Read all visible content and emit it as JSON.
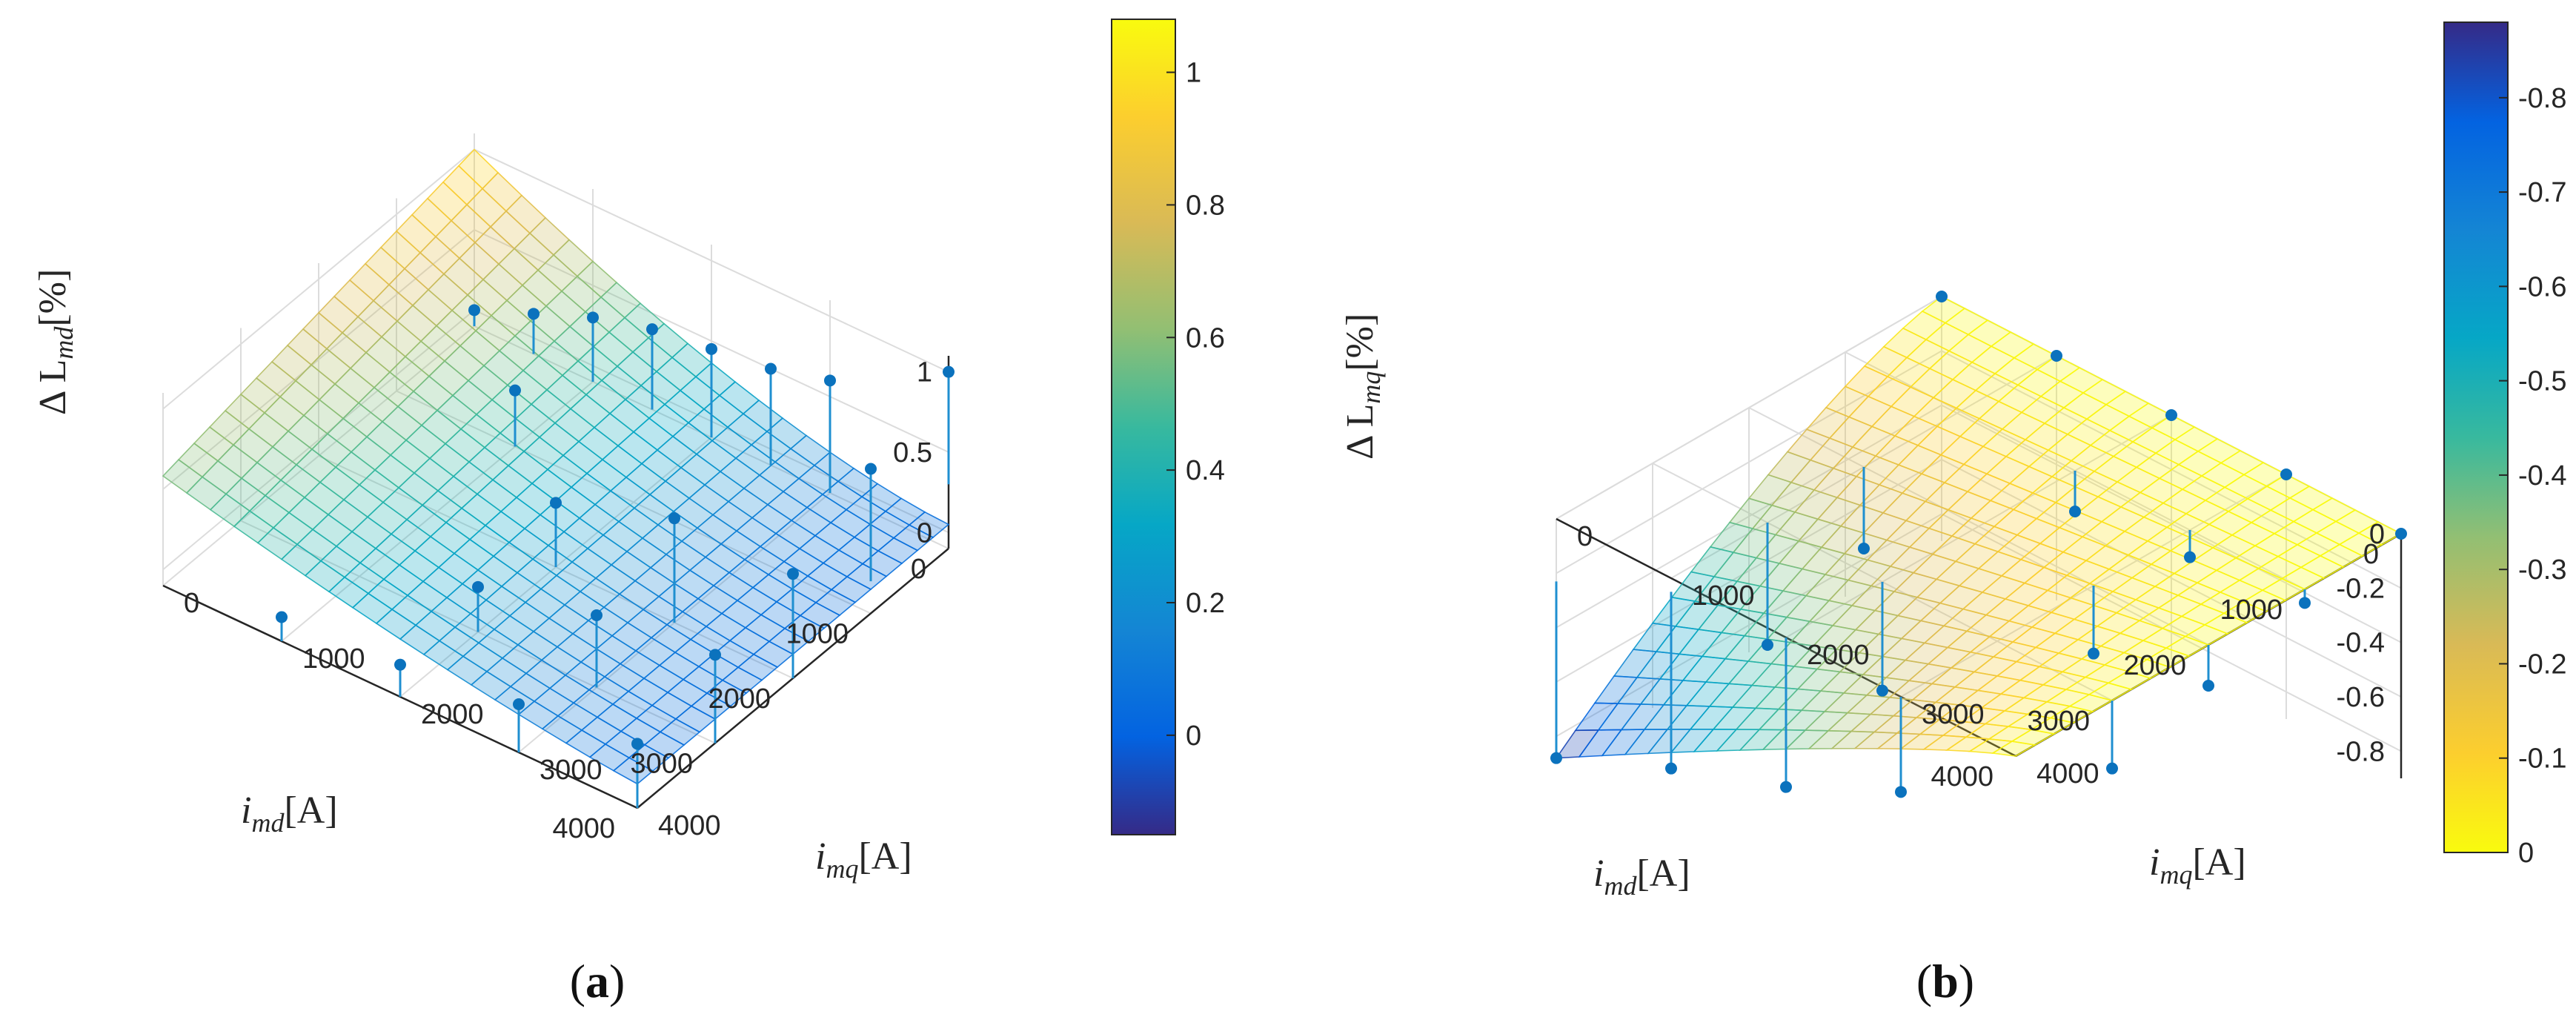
{
  "chart_data": [
    {
      "panel": "(a)",
      "type": "surface3d",
      "zlabel": "Δ L_md[%]",
      "xlabel": "i_md[A]",
      "ylabel": "i_mq[A]",
      "x_ticks": [
        "0",
        "1000",
        "2000",
        "3000",
        "4000"
      ],
      "y_ticks": [
        "0",
        "1000",
        "2000",
        "3000",
        "4000"
      ],
      "z_ticks": [
        "0",
        "0.5",
        "1"
      ],
      "xlim": [
        0,
        4000
      ],
      "ylim": [
        0,
        4000
      ],
      "zlim": [
        0,
        1.1
      ],
      "colorbar": {
        "ticks": [
          "0",
          "0.2",
          "0.4",
          "0.6",
          "0.8",
          "1"
        ],
        "range": [
          -0.15,
          1.08
        ],
        "colormap": "parula"
      },
      "grid": true,
      "surface_colorbar_range": [
        -0.15,
        1.08
      ],
      "measured_points": [
        {
          "x": 0,
          "y": 4000,
          "z": 1.0
        },
        {
          "x": 1000,
          "y": 4000,
          "z": 0.8
        },
        {
          "x": 0,
          "y": 3000,
          "z": 0.6
        },
        {
          "x": 0,
          "y": 2500,
          "z": 0.5
        },
        {
          "x": 0,
          "y": 2000,
          "z": 0.45
        },
        {
          "x": 0,
          "y": 1500,
          "z": 0.4
        },
        {
          "x": 0,
          "y": 1000,
          "z": 0.3
        },
        {
          "x": 0,
          "y": 500,
          "z": 0.15
        },
        {
          "x": 0,
          "y": 0,
          "z": 0.0
        },
        {
          "x": 2000,
          "y": 4000,
          "z": 0.55
        },
        {
          "x": 2000,
          "y": 3000,
          "z": 0.55
        },
        {
          "x": 3000,
          "y": 4000,
          "z": 0.45
        },
        {
          "x": 4000,
          "y": 4000,
          "z": 0.3
        },
        {
          "x": 3000,
          "y": 3000,
          "z": 0.35
        },
        {
          "x": 2000,
          "y": 2000,
          "z": 0.3
        },
        {
          "x": 1000,
          "y": 1000,
          "z": 0.25
        },
        {
          "x": 4000,
          "y": 3000,
          "z": 0.2
        },
        {
          "x": 3000,
          "y": 2000,
          "z": 0.18
        },
        {
          "x": 4000,
          "y": 2000,
          "z": 0.1
        },
        {
          "x": 4000,
          "y": 1000,
          "z": 0.05
        }
      ]
    },
    {
      "panel": "(b)",
      "type": "surface3d",
      "zlabel": "Δ L_mq[%]",
      "xlabel": "i_md[A]",
      "ylabel": "i_mq[A]",
      "x_ticks": [
        "0",
        "1000",
        "2000",
        "3000",
        "4000"
      ],
      "y_ticks": [
        "0",
        "1000",
        "2000",
        "3000",
        "4000"
      ],
      "z_ticks": [
        "0",
        "-0.2",
        "-0.4",
        "-0.6",
        "-0.8"
      ],
      "xlim": [
        0,
        4000
      ],
      "ylim": [
        0,
        4000
      ],
      "zlim": [
        -0.9,
        0
      ],
      "colorbar": {
        "ticks": [
          "0",
          "-0.1",
          "-0.2",
          "-0.3",
          "-0.4",
          "-0.5",
          "-0.6",
          "-0.7",
          "-0.8"
        ],
        "range": [
          -0.88,
          0
        ],
        "colormap": "parula_reversed"
      },
      "grid": true,
      "measured_points": [
        {
          "x": 0,
          "y": 4000,
          "z": 0.0
        },
        {
          "x": 0,
          "y": 3000,
          "z": 0.0
        },
        {
          "x": 0,
          "y": 2000,
          "z": 0.0
        },
        {
          "x": 0,
          "y": 1000,
          "z": 0.0
        },
        {
          "x": 0,
          "y": 0,
          "z": 0.0
        },
        {
          "x": 1000,
          "y": 4000,
          "z": -0.05
        },
        {
          "x": 1000,
          "y": 3000,
          "z": -0.1
        },
        {
          "x": 1000,
          "y": 2000,
          "z": -0.15
        },
        {
          "x": 2000,
          "y": 4000,
          "z": -0.15
        },
        {
          "x": 2000,
          "y": 3000,
          "z": -0.25
        },
        {
          "x": 2000,
          "y": 1000,
          "z": -0.3
        },
        {
          "x": 3000,
          "y": 4000,
          "z": -0.25
        },
        {
          "x": 3000,
          "y": 2000,
          "z": -0.4
        },
        {
          "x": 3000,
          "y": 1000,
          "z": -0.45
        },
        {
          "x": 4000,
          "y": 3000,
          "z": -0.35
        },
        {
          "x": 4000,
          "y": 2000,
          "z": -0.55
        },
        {
          "x": 4000,
          "y": 1000,
          "z": -0.7
        },
        {
          "x": 4000,
          "y": 0,
          "z": -0.88
        }
      ]
    }
  ],
  "labels": {
    "a": {
      "z_main": "Δ L",
      "z_sub": "md",
      "z_unit": "[%]",
      "x_main": "i",
      "x_sub": "md",
      "x_unit": "[A]",
      "y_main": "i",
      "y_sub": "mq",
      "y_unit": "[A]",
      "panel_open": "(",
      "panel_letter": "a",
      "panel_close": ")"
    },
    "b": {
      "z_main": "Δ L",
      "z_sub": "mq",
      "z_unit": "[%]",
      "x_main": "i",
      "x_sub": "md",
      "x_unit": "[A]",
      "y_main": "i",
      "y_sub": "mq",
      "y_unit": "[A]",
      "panel_open": "(",
      "panel_letter": "b",
      "panel_close": ")"
    }
  },
  "colors": {
    "stem": "#1f8fd0",
    "marker": "#0b72bd",
    "grid": "#dcdcdc",
    "axis": "#262626"
  }
}
